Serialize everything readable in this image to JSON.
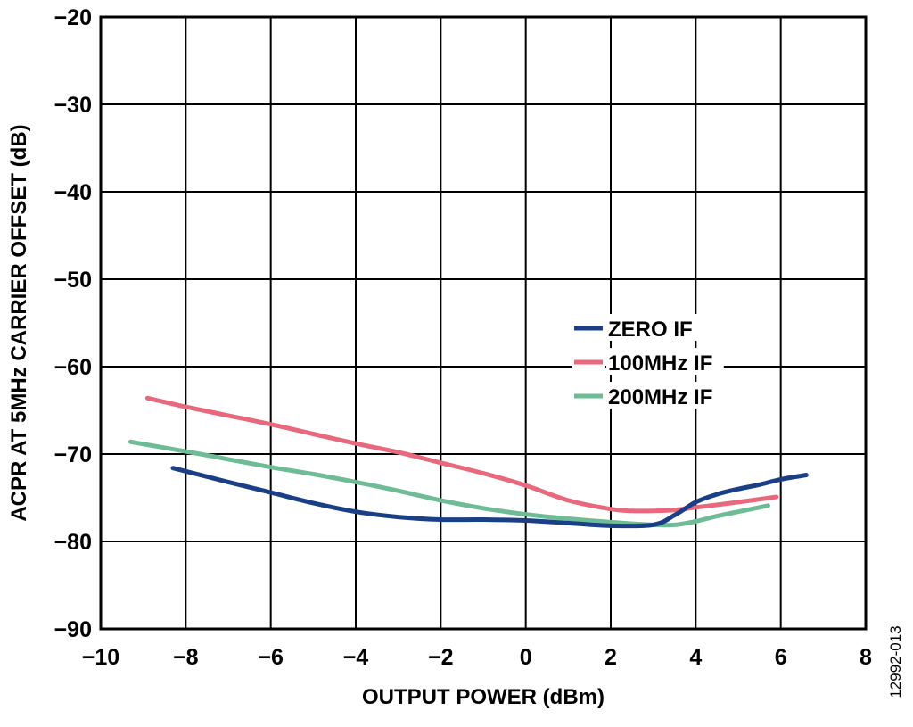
{
  "chart_data": {
    "type": "line",
    "xlabel": "OUTPUT POWER (dBm)",
    "ylabel": "ACPR AT 5MHz CARRIER OFFSET (dB)",
    "xlim": [
      -10,
      8
    ],
    "ylim": [
      -90,
      -20
    ],
    "x_ticks": [
      -10,
      -8,
      -6,
      -4,
      -2,
      0,
      2,
      4,
      6,
      8
    ],
    "y_ticks": [
      -90,
      -80,
      -70,
      -60,
      -50,
      -40,
      -30,
      -20
    ],
    "x_tick_labels": [
      "−10",
      "−8",
      "−6",
      "−4",
      "−2",
      "0",
      "2",
      "4",
      "6",
      "8"
    ],
    "y_tick_labels": [
      "−90",
      "−80",
      "−70",
      "−60",
      "−50",
      "−40",
      "−30",
      "−20"
    ],
    "grid": true,
    "legend_position": "center-right",
    "figure_id": "12992-013",
    "series": [
      {
        "name": "ZERO IF",
        "color": "#1b3f86",
        "x": [
          -8.3,
          -7,
          -6,
          -5,
          -4,
          -3,
          -2,
          -1,
          0,
          1,
          2,
          3,
          3.5,
          4,
          4.5,
          5,
          5.5,
          6,
          6.6
        ],
        "y": [
          -71.6,
          -73.2,
          -74.4,
          -75.6,
          -76.6,
          -77.2,
          -77.5,
          -77.5,
          -77.6,
          -77.9,
          -78.2,
          -78.1,
          -77.0,
          -75.5,
          -74.6,
          -74.0,
          -73.5,
          -72.9,
          -72.4
        ]
      },
      {
        "name": "100MHz IF",
        "color": "#e8697d",
        "x": [
          -8.9,
          -8,
          -7,
          -6,
          -5,
          -4,
          -3,
          -2,
          -1,
          0,
          1,
          2,
          2.5,
          3,
          3.5,
          4,
          5,
          5.9
        ],
        "y": [
          -63.6,
          -64.6,
          -65.6,
          -66.6,
          -67.7,
          -68.8,
          -69.8,
          -71.0,
          -72.2,
          -73.6,
          -75.3,
          -76.3,
          -76.5,
          -76.5,
          -76.4,
          -76.1,
          -75.5,
          -74.9
        ]
      },
      {
        "name": "200MHz IF",
        "color": "#6dbc95",
        "x": [
          -9.3,
          -8,
          -7,
          -6,
          -5,
          -4,
          -3,
          -2,
          -1,
          0,
          1,
          2,
          3,
          3.5,
          4,
          4.5,
          5,
          5.7
        ],
        "y": [
          -68.6,
          -69.7,
          -70.6,
          -71.5,
          -72.3,
          -73.2,
          -74.2,
          -75.3,
          -76.2,
          -76.9,
          -77.4,
          -77.8,
          -78.1,
          -78.1,
          -77.7,
          -77.1,
          -76.6,
          -75.9
        ]
      }
    ]
  }
}
